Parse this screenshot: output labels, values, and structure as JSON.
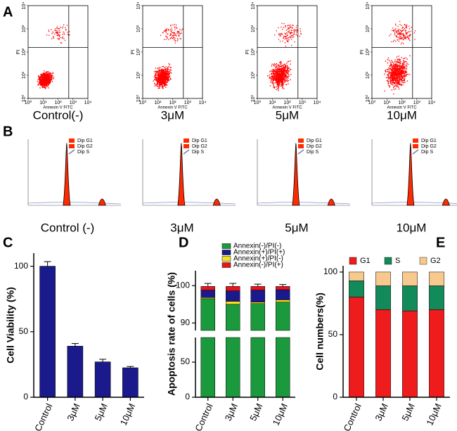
{
  "chart_data": [
    {
      "type": "flow_scatter",
      "label": "A",
      "xlabel": "Annexin V FITC",
      "ylabel": "PI",
      "log_scale": true,
      "xlim": [
        1,
        10000
      ],
      "ylim": [
        1,
        10000
      ],
      "xticks": [
        {
          "value": 1,
          "label": "10⁰"
        },
        {
          "value": 10,
          "label": "10¹"
        },
        {
          "value": 100,
          "label": "10²"
        },
        {
          "value": 1000,
          "label": "10³"
        },
        {
          "value": 10000,
          "label": "10⁴"
        }
      ],
      "yticks": [
        {
          "value": 1,
          "label": "10⁰"
        },
        {
          "value": 10,
          "label": "10¹"
        },
        {
          "value": 100,
          "label": "10²"
        },
        {
          "value": 1000,
          "label": "10³"
        },
        {
          "value": 10000,
          "label": "10⁴"
        }
      ],
      "captions": [
        "Control(-)",
        "3μM",
        "5μM",
        "10μM"
      ],
      "color": "#ff0000"
    },
    {
      "type": "cell_cycle",
      "label": "B",
      "legend": [
        "Dip G1",
        "Dip G2",
        "Dip S"
      ],
      "captions": [
        "Control (-)",
        "3μM",
        "5μM",
        "10μM"
      ],
      "color": "#ff2a00"
    },
    {
      "type": "bar",
      "label": "C",
      "ylabel": "Cell Viability (%)",
      "categories": [
        "Control",
        "3μM",
        "5μM",
        "10μM"
      ],
      "values": [
        100,
        39,
        27,
        22.5
      ],
      "errors": [
        3.5,
        2,
        2,
        1
      ],
      "color": "#1a1a8c",
      "ylim": [
        0,
        110
      ],
      "yticks": [
        0,
        50,
        100
      ]
    },
    {
      "type": "broken_stacked_bar",
      "label": "D",
      "ylabel": "Apoptosis rate of cells (%)",
      "categories": [
        "Control",
        "3μM",
        "5μM",
        "10μM"
      ],
      "series": [
        {
          "name": "Annexin(-)/PI(-)",
          "color": "#1a9a3c",
          "values": [
            96.5,
            95,
            95.2,
            95.6
          ]
        },
        {
          "name": "Annexin(+)/PI(+)",
          "color": "#1a1a8c",
          "values": [
            2.0,
            2.8,
            3.2,
            2.7
          ]
        },
        {
          "name": "Annexin(+)/PI(-)",
          "color": "#f5e21a",
          "values": [
            0.3,
            0.8,
            0.4,
            0.6
          ]
        },
        {
          "name": "Annexin(-)/PI(+)",
          "color": "#e8141c",
          "values": [
            1.0,
            1.2,
            1.0,
            0.9
          ]
        }
      ],
      "stack_order": [
        0,
        2,
        1,
        3
      ],
      "errors": [
        0.8,
        0.8,
        0.6,
        0.5
      ],
      "ylim": [
        0,
        104
      ],
      "y_break": [
        85,
        88
      ],
      "yticks": [
        0,
        50,
        90,
        100
      ]
    },
    {
      "type": "stacked_bar",
      "label": "E",
      "ylabel": "Cell numbers(%)",
      "categories": [
        "Control",
        "3μM",
        "5μM",
        "10μM"
      ],
      "series": [
        {
          "name": "G1",
          "color": "#ee1c1c",
          "values": [
            80,
            70,
            69,
            70
          ]
        },
        {
          "name": "S",
          "color": "#138a5a",
          "values": [
            13,
            19,
            20,
            19
          ]
        },
        {
          "name": "G2",
          "color": "#f8c98e",
          "values": [
            7,
            11,
            11,
            11
          ]
        }
      ],
      "ylim": [
        0,
        105
      ],
      "yticks": [
        0,
        50,
        100
      ]
    }
  ]
}
